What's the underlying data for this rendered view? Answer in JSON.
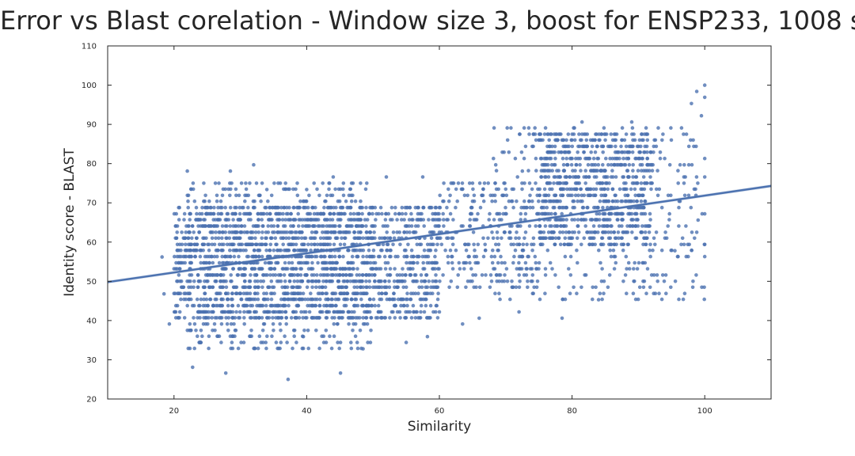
{
  "chart_data": {
    "type": "scatter",
    "title": "Error vs Blast corelation - Window size 3, boost for ENSP233, 1008 s",
    "xlabel": "Similarity",
    "ylabel": "Identity score - BLAST",
    "xlim": [
      10,
      110
    ],
    "ylim": [
      20,
      110
    ],
    "xticks": [
      20,
      40,
      60,
      80,
      100
    ],
    "yticks": [
      20,
      30,
      40,
      50,
      60,
      70,
      80,
      90,
      100,
      110
    ],
    "grid": false,
    "legend": "none",
    "point_color": "#4c72b0",
    "line_color": "#4c72b0",
    "regression_line": {
      "x": [
        10,
        110
      ],
      "y": [
        49.8,
        74.3
      ]
    },
    "clusters": [
      {
        "x_range": [
          20,
          60
        ],
        "y_range": [
          40,
          70
        ],
        "density": "dense"
      },
      {
        "x_range": [
          22,
          50
        ],
        "y_range": [
          32,
          76
        ],
        "density": "medium"
      },
      {
        "x_range": [
          60,
          75
        ],
        "y_range": [
          48,
          76
        ],
        "density": "medium"
      },
      {
        "x_range": [
          75,
          92
        ],
        "y_range": [
          58,
          88
        ],
        "density": "dense"
      },
      {
        "x_range": [
          68,
          100
        ],
        "y_range": [
          45,
          90
        ],
        "density": "sparse"
      }
    ],
    "points": [
      [
        18.2,
        56.2
      ],
      [
        18.5,
        46.8
      ],
      [
        19.3,
        39.1
      ],
      [
        22.8,
        28.1
      ],
      [
        27.8,
        26.6
      ],
      [
        32.0,
        79.7
      ],
      [
        37.2,
        25.0
      ],
      [
        45.1,
        26.6
      ],
      [
        22.0,
        78.1
      ],
      [
        28.5,
        78.1
      ],
      [
        39.5,
        35.9
      ],
      [
        48.5,
        32.8
      ],
      [
        55.0,
        34.4
      ],
      [
        58.2,
        35.9
      ],
      [
        63.5,
        39.1
      ],
      [
        66.0,
        40.6
      ],
      [
        69.0,
        46.9
      ],
      [
        72.0,
        42.2
      ],
      [
        78.5,
        40.6
      ],
      [
        79.7,
        46.9
      ],
      [
        88.2,
        46.9
      ],
      [
        84.0,
        45.3
      ],
      [
        92.0,
        51.6
      ],
      [
        95.5,
        57.8
      ],
      [
        97.5,
        56.3
      ],
      [
        98.8,
        62.5
      ],
      [
        100.0,
        56.3
      ],
      [
        74.0,
        84.4
      ],
      [
        78.0,
        87.5
      ],
      [
        81.5,
        90.6
      ],
      [
        89.0,
        90.6
      ],
      [
        93.0,
        89.1
      ],
      [
        96.5,
        89.1
      ],
      [
        98.0,
        95.3
      ],
      [
        98.8,
        98.4
      ],
      [
        100.0,
        100.0
      ],
      [
        100.0,
        96.9
      ],
      [
        99.5,
        92.2
      ],
      [
        100.0,
        81.3
      ],
      [
        100.0,
        76.6
      ],
      [
        100.0,
        67.2
      ],
      [
        100.0,
        59.4
      ],
      [
        99.0,
        65.6
      ],
      [
        97.0,
        71.9
      ],
      [
        96.0,
        75.0
      ],
      [
        94.5,
        71.9
      ],
      [
        92.5,
        59.4
      ],
      [
        91.0,
        54.7
      ],
      [
        86.5,
        56.3
      ],
      [
        83.0,
        62.5
      ],
      [
        57.5,
        76.6
      ],
      [
        52.0,
        76.6
      ],
      [
        44.0,
        76.6
      ],
      [
        40.0,
        73.4
      ],
      [
        34.0,
        73.4
      ],
      [
        75.5,
        79.7
      ],
      [
        68.5,
        79.7
      ],
      [
        72.5,
        78.1
      ],
      [
        65.0,
        75.0
      ],
      [
        62.0,
        75.0
      ]
    ]
  }
}
